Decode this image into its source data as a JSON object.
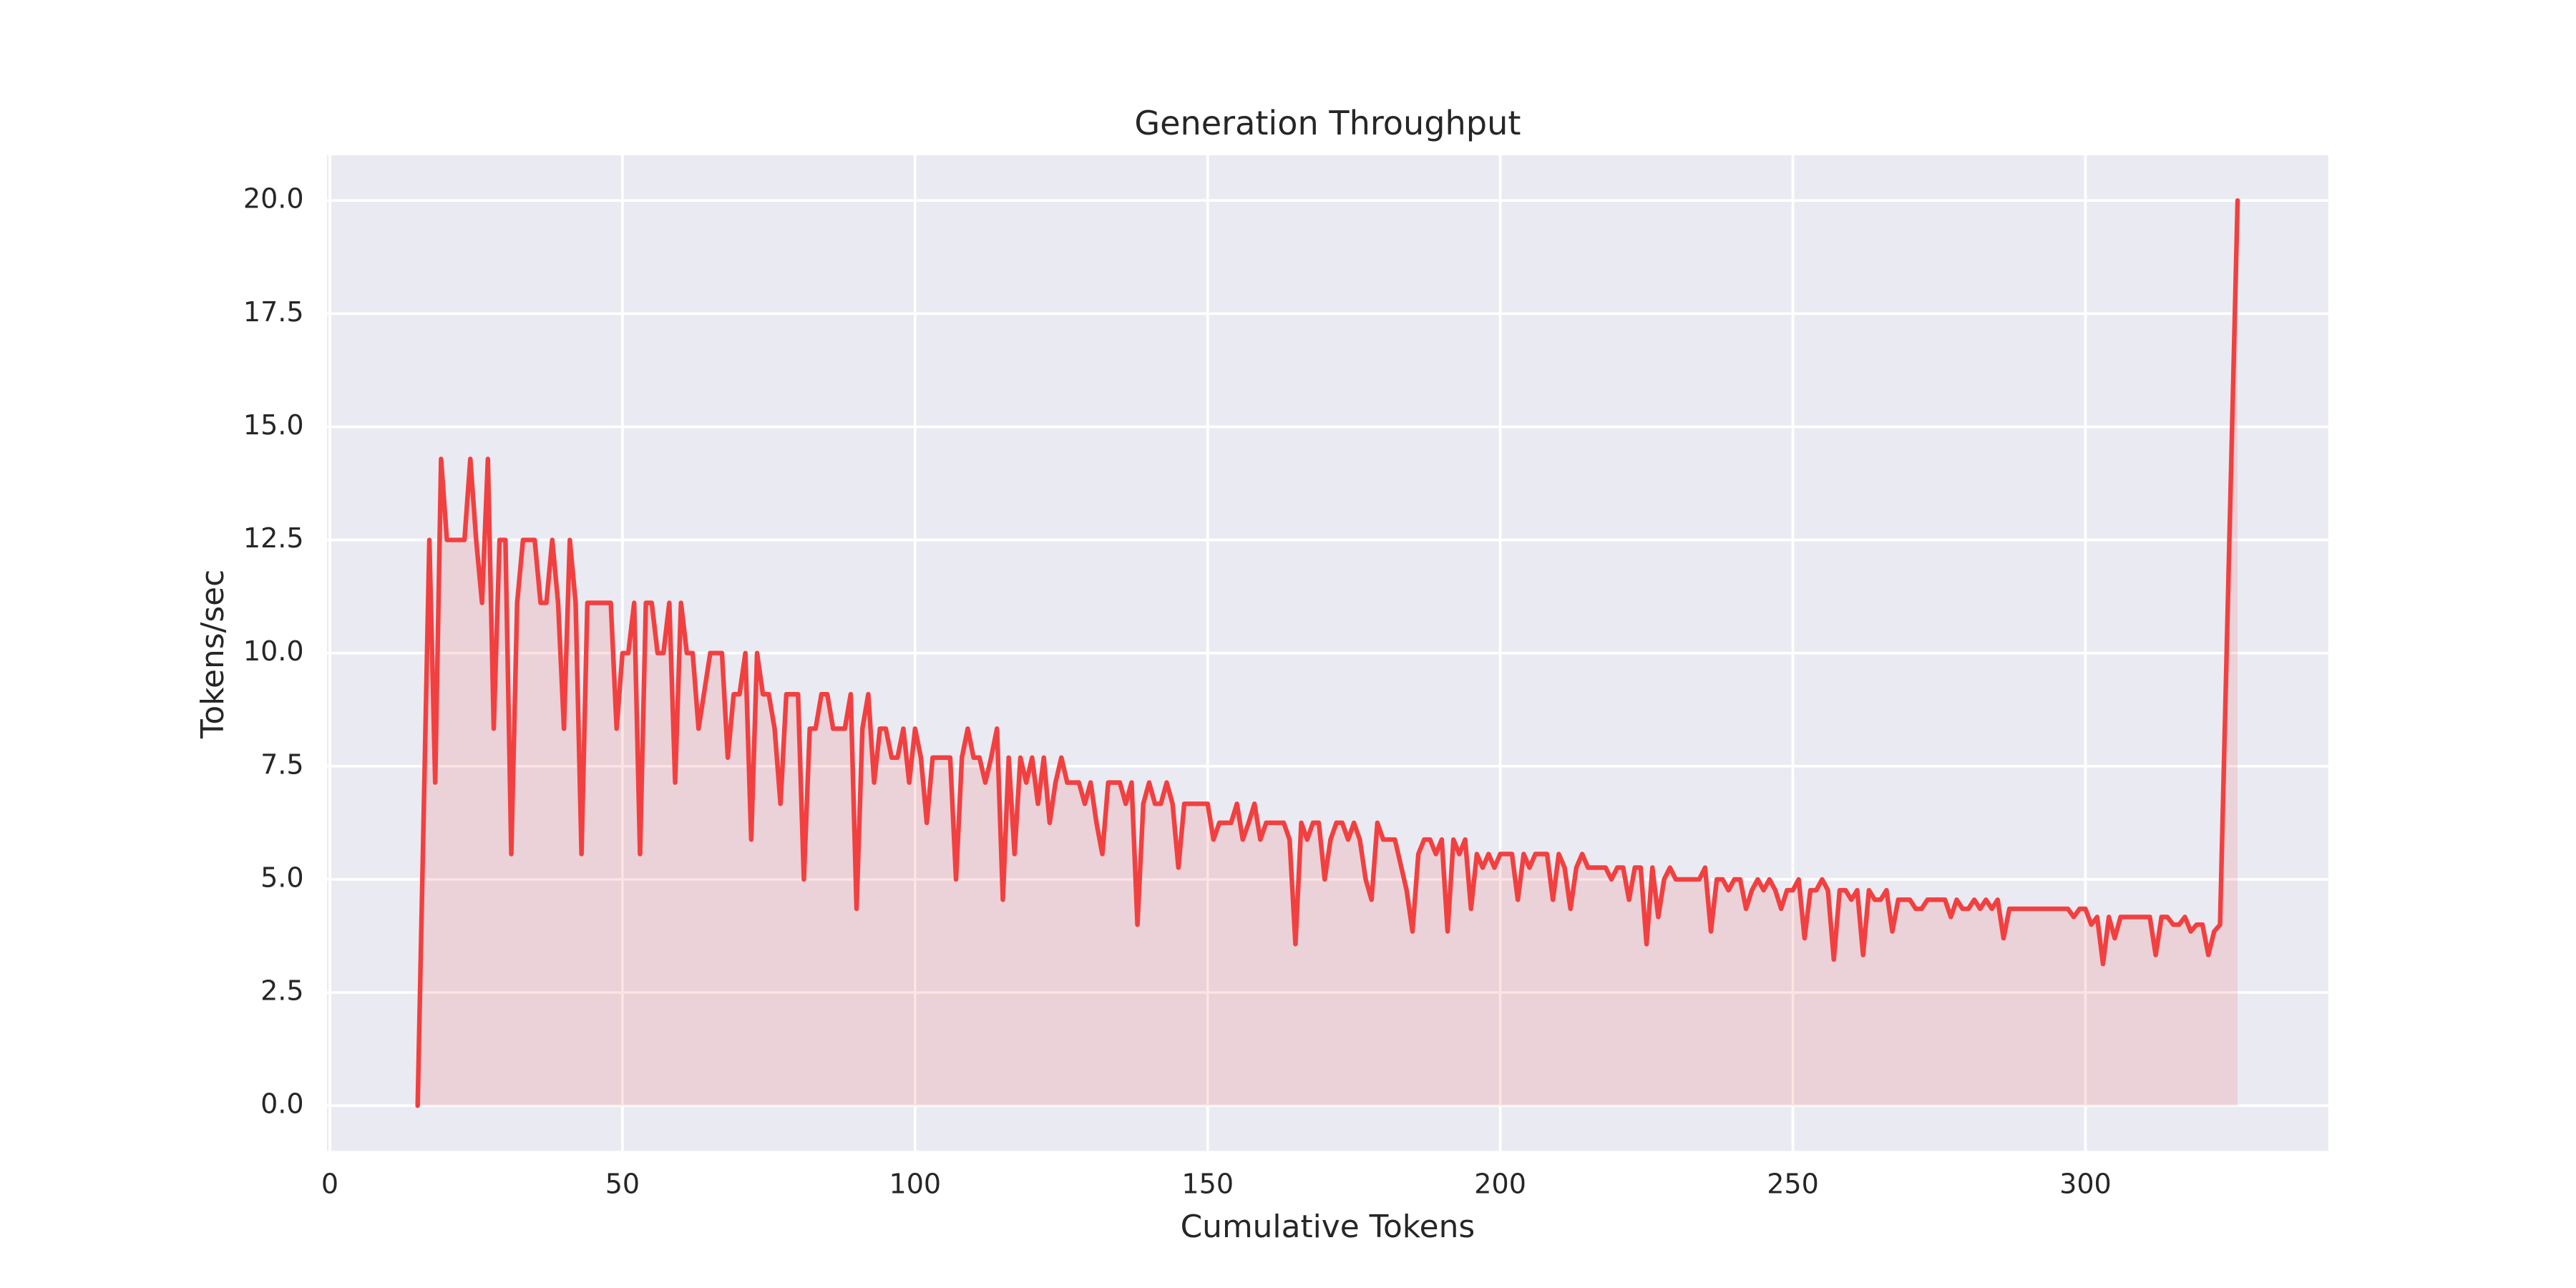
{
  "chart_data": {
    "type": "line",
    "title": "Generation Throughput",
    "xlabel": "Cumulative Tokens",
    "ylabel": "Tokens/sec",
    "color": "#f24040",
    "fill": true,
    "grid": true,
    "xlim": [
      -0.5,
      341.5
    ],
    "ylim": [
      -1,
      21
    ],
    "xticks": [
      0,
      50,
      100,
      150,
      200,
      250,
      300
    ],
    "yticks": [
      {
        "value": 0,
        "label": "0.0"
      },
      {
        "value": 2.5,
        "label": "2.5"
      },
      {
        "value": 5,
        "label": "5.0"
      },
      {
        "value": 7.5,
        "label": "7.5"
      },
      {
        "value": 10,
        "label": "10.0"
      },
      {
        "value": 12.5,
        "label": "12.5"
      },
      {
        "value": 15,
        "label": "15.0"
      },
      {
        "value": 17.5,
        "label": "17.5"
      },
      {
        "value": 20,
        "label": "20.0"
      }
    ],
    "x": [
      15,
      17,
      18,
      19,
      20,
      23,
      24,
      25,
      26,
      27,
      28,
      29,
      30,
      31,
      32,
      33,
      35,
      36,
      37,
      38,
      39,
      40,
      41,
      42,
      43,
      44,
      48,
      49,
      50,
      51,
      52,
      53,
      54,
      55,
      56,
      57,
      58,
      59,
      60,
      61,
      62,
      63,
      65,
      67,
      68,
      69,
      70,
      71,
      72,
      73,
      74,
      75,
      76,
      77,
      78,
      80,
      81,
      82,
      83,
      84,
      85,
      86,
      88,
      89,
      90,
      91,
      92,
      93,
      94,
      95,
      96,
      97,
      98,
      99,
      100,
      101,
      102,
      103,
      106,
      107,
      108,
      109,
      110,
      111,
      112,
      113,
      114,
      115,
      116,
      117,
      118,
      119,
      120,
      121,
      122,
      123,
      124,
      125,
      126,
      128,
      129,
      130,
      131,
      132,
      133,
      135,
      136,
      137,
      138,
      139,
      140,
      141,
      142,
      143,
      144,
      145,
      146,
      150,
      151,
      152,
      154,
      155,
      156,
      157,
      158,
      159,
      160,
      163,
      164,
      165,
      166,
      167,
      168,
      169,
      170,
      171,
      172,
      173,
      174,
      175,
      176,
      177,
      178,
      179,
      180,
      182,
      184,
      185,
      186,
      187,
      188,
      189,
      190,
      191,
      192,
      193,
      194,
      195,
      196,
      197,
      198,
      199,
      200,
      202,
      203,
      204,
      205,
      206,
      208,
      209,
      210,
      211,
      212,
      213,
      214,
      215,
      218,
      219,
      220,
      221,
      222,
      223,
      224,
      225,
      226,
      227,
      228,
      229,
      230,
      234,
      235,
      236,
      237,
      238,
      239,
      240,
      241,
      242,
      243,
      244,
      245,
      246,
      247,
      248,
      249,
      250,
      251,
      252,
      253,
      254,
      255,
      256,
      257,
      258,
      259,
      260,
      261,
      262,
      263,
      264,
      265,
      266,
      267,
      268,
      270,
      271,
      272,
      273,
      276,
      277,
      278,
      279,
      280,
      281,
      282,
      283,
      284,
      285,
      286,
      287,
      297,
      298,
      299,
      300,
      301,
      302,
      303,
      304,
      305,
      306,
      311,
      312,
      313,
      314,
      315,
      316,
      317,
      318,
      319,
      320,
      321,
      322,
      323,
      326
    ],
    "values": [
      0,
      12.5,
      7.14,
      14.29,
      12.5,
      12.5,
      14.29,
      12.5,
      11.11,
      14.29,
      8.33,
      12.5,
      12.5,
      5.56,
      11.11,
      12.5,
      12.5,
      11.11,
      11.11,
      12.5,
      11.11,
      8.33,
      12.5,
      11.11,
      5.56,
      11.11,
      11.11,
      8.33,
      10,
      10,
      11.11,
      5.56,
      11.11,
      11.11,
      10,
      10,
      11.11,
      7.14,
      11.11,
      10,
      10,
      8.33,
      10,
      10,
      7.69,
      9.09,
      9.09,
      10,
      5.88,
      10,
      9.09,
      9.09,
      8.33,
      6.67,
      9.09,
      9.09,
      5,
      8.33,
      8.33,
      9.09,
      9.09,
      8.33,
      8.33,
      9.09,
      4.35,
      8.33,
      9.09,
      7.14,
      8.33,
      8.33,
      7.69,
      7.69,
      8.33,
      7.14,
      8.33,
      7.69,
      6.25,
      7.69,
      7.69,
      5,
      7.69,
      8.33,
      7.69,
      7.69,
      7.14,
      7.69,
      8.33,
      4.55,
      7.69,
      5.56,
      7.69,
      7.14,
      7.69,
      6.67,
      7.69,
      6.25,
      7.14,
      7.69,
      7.14,
      7.14,
      6.67,
      7.14,
      6.25,
      5.56,
      7.14,
      7.14,
      6.67,
      7.14,
      4,
      6.67,
      7.14,
      6.67,
      6.67,
      7.14,
      6.67,
      5.26,
      6.67,
      6.67,
      5.88,
      6.25,
      6.25,
      6.67,
      5.88,
      6.25,
      6.67,
      5.88,
      6.25,
      6.25,
      5.88,
      3.57,
      6.25,
      5.88,
      6.25,
      6.25,
      5,
      5.88,
      6.25,
      6.25,
      5.88,
      6.25,
      5.88,
      5,
      4.55,
      6.25,
      5.88,
      5.88,
      4.76,
      3.85,
      5.56,
      5.88,
      5.88,
      5.56,
      5.88,
      3.85,
      5.88,
      5.56,
      5.88,
      4.35,
      5.56,
      5.26,
      5.56,
      5.26,
      5.56,
      5.56,
      4.55,
      5.56,
      5.26,
      5.56,
      5.56,
      4.55,
      5.56,
      5.26,
      4.35,
      5.26,
      5.56,
      5.26,
      5.26,
      5,
      5.26,
      5.26,
      4.55,
      5.26,
      5.26,
      3.57,
      5.26,
      4.17,
      5,
      5.26,
      5,
      5,
      5.26,
      3.85,
      5,
      5,
      4.76,
      5,
      5,
      4.35,
      4.76,
      5,
      4.76,
      5,
      4.76,
      4.35,
      4.76,
      4.76,
      5,
      3.7,
      4.76,
      4.76,
      5,
      4.76,
      3.23,
      4.76,
      4.76,
      4.55,
      4.76,
      3.33,
      4.76,
      4.55,
      4.55,
      4.76,
      3.85,
      4.55,
      4.55,
      4.35,
      4.35,
      4.55,
      4.55,
      4.17,
      4.55,
      4.35,
      4.35,
      4.55,
      4.35,
      4.55,
      4.35,
      4.55,
      3.7,
      4.35,
      4.35,
      4.17,
      4.35,
      4.35,
      4,
      4.17,
      3.13,
      4.17,
      3.7,
      4.17,
      4.17,
      3.33,
      4.17,
      4.17,
      4,
      4,
      4.17,
      3.85,
      4,
      4,
      3.33,
      3.85,
      4,
      20
    ]
  }
}
